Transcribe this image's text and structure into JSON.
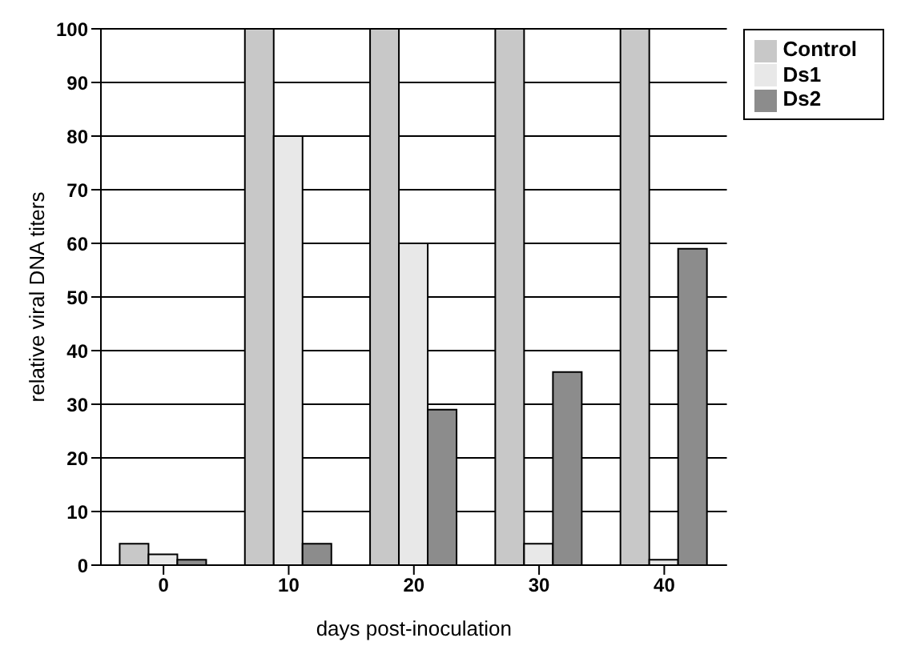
{
  "chart_data": {
    "type": "bar",
    "xlabel": "days post-inoculation",
    "ylabel": "relative viral DNA titers",
    "categories": [
      "0",
      "10",
      "20",
      "30",
      "40"
    ],
    "series": [
      {
        "name": "Control",
        "color": "#c8c8c8",
        "values": [
          4,
          100,
          100,
          100,
          100
        ]
      },
      {
        "name": "Ds1",
        "color": "#e8e8e8",
        "values": [
          2,
          80,
          60,
          4,
          1
        ]
      },
      {
        "name": "Ds2",
        "color": "#8c8c8c",
        "values": [
          1,
          4,
          29,
          36,
          59
        ]
      }
    ],
    "ylim": [
      0,
      100
    ],
    "yticks": [
      0,
      10,
      20,
      30,
      40,
      50,
      60,
      70,
      80,
      90,
      100
    ],
    "grid": "y",
    "legend": "right"
  }
}
